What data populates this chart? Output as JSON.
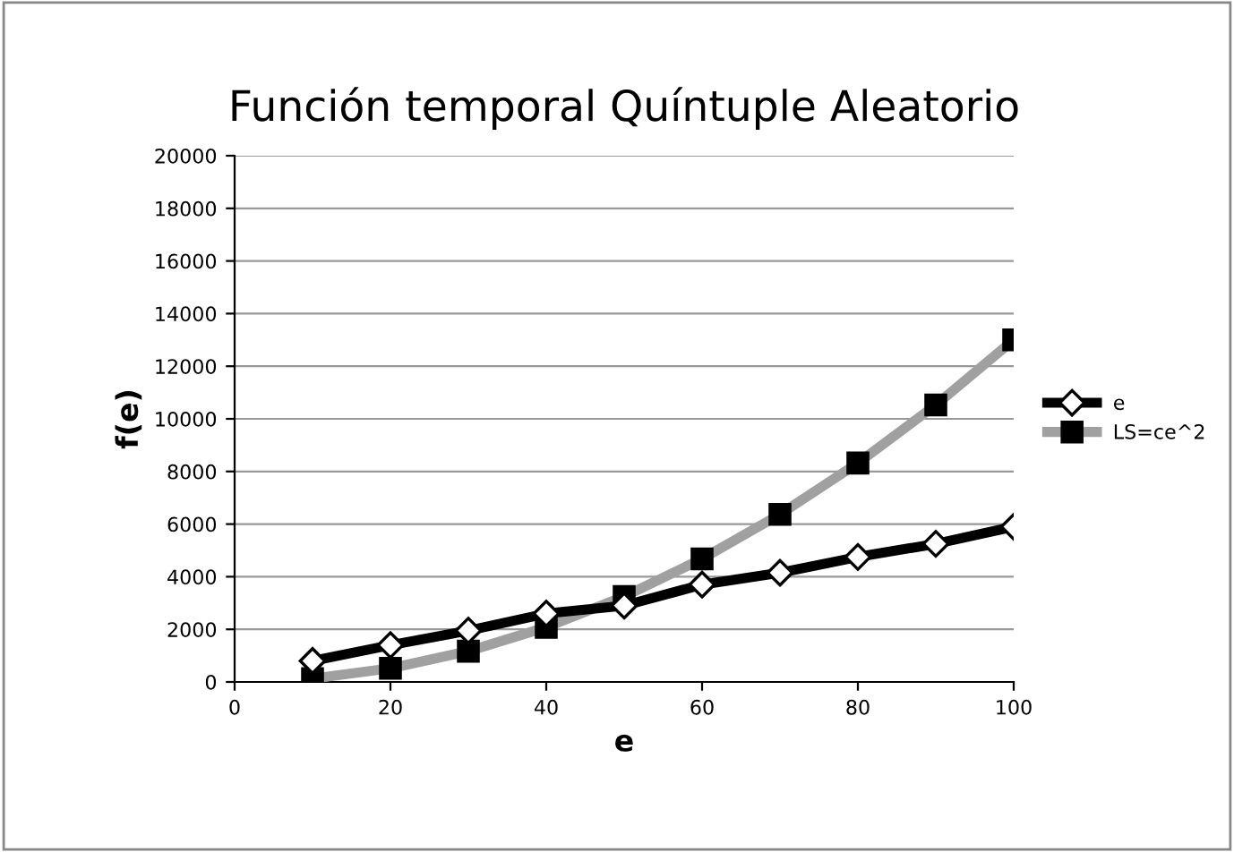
{
  "chart_data": {
    "type": "line",
    "title": "Función temporal Quíntuple Aleatorio",
    "xlabel": "e",
    "ylabel": "f(e)",
    "x": [
      10,
      20,
      30,
      40,
      50,
      60,
      70,
      80,
      90,
      100
    ],
    "series": [
      {
        "name": "e",
        "color": "#000000",
        "values": [
          800,
          1400,
          1950,
          2600,
          2900,
          3700,
          4150,
          4750,
          5250,
          5900
        ],
        "marker": "diamond"
      },
      {
        "name": "LS=ce^2",
        "color": "#a0a0a0",
        "values": [
          130,
          520,
          1170,
          2080,
          3250,
          4680,
          6370,
          8320,
          10530,
          13000
        ],
        "marker": "square"
      }
    ],
    "xlim": [
      0,
      100
    ],
    "xticks": [
      0,
      20,
      40,
      60,
      80,
      100
    ],
    "ylim": [
      0,
      20000
    ],
    "yticks": [
      0,
      2000,
      4000,
      6000,
      8000,
      10000,
      12000,
      14000,
      16000,
      18000,
      20000
    ],
    "grid": "y",
    "legend": "right"
  }
}
